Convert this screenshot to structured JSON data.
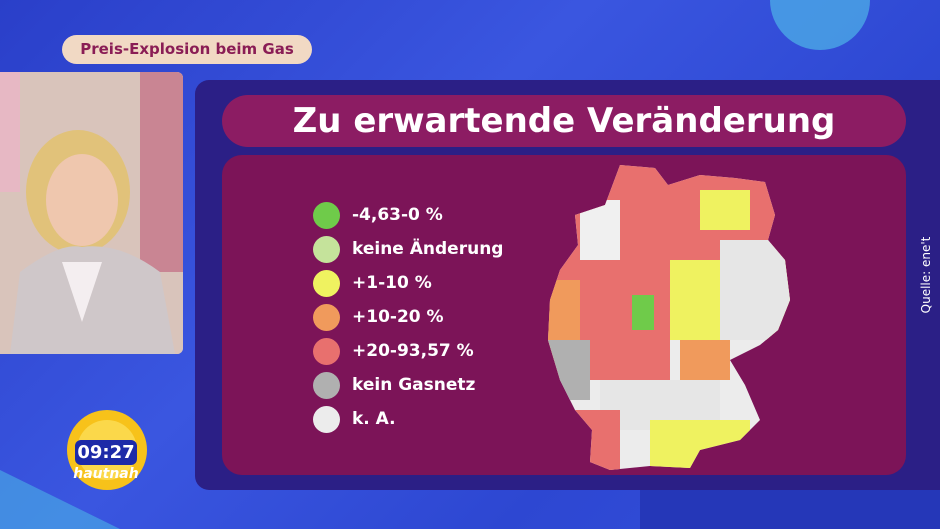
{
  "header": {
    "topic": "Preis-Explosion beim Gas"
  },
  "graphic": {
    "title": "Zu erwartende Veränderung",
    "source": "Quelle: ene't",
    "legend": [
      {
        "label": "-4,63-0 %",
        "color": "#6fcb4a"
      },
      {
        "label": "keine Änderung",
        "color": "#c5e39b"
      },
      {
        "label": "+1-10 %",
        "color": "#eff260"
      },
      {
        "label": "+10-20 %",
        "color": "#f09a5c"
      },
      {
        "label": "+20-93,57 %",
        "color": "#e8706e"
      },
      {
        "label": "kein Gasnetz",
        "color": "#b0b0b0"
      },
      {
        "label": "k. A.",
        "color": "#ececec"
      }
    ]
  },
  "overlay": {
    "time": "09:27",
    "show": "hautnah"
  }
}
